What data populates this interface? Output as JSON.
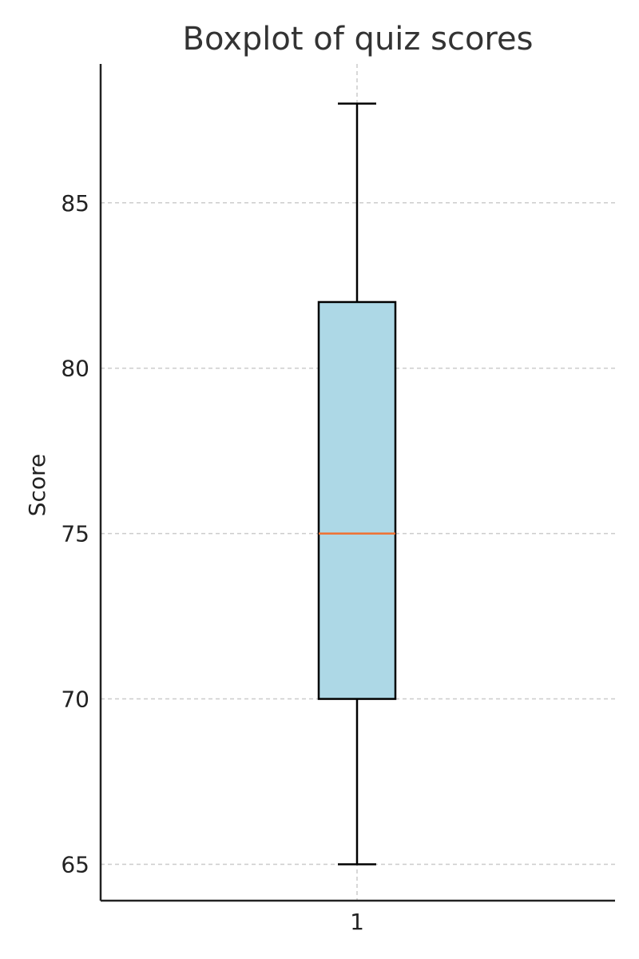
{
  "chart_data": {
    "type": "boxplot",
    "title": "Boxplot of quiz scores",
    "xlabel": "",
    "ylabel": "Score",
    "categories": [
      "1"
    ],
    "boxes": [
      {
        "category": "1",
        "whisker_low": 65,
        "q1": 70,
        "median": 75,
        "q3": 82,
        "whisker_high": 88
      }
    ],
    "yticks": [
      65,
      70,
      75,
      80,
      85
    ],
    "ylim": [
      63.9,
      89.2
    ],
    "grid": true,
    "colors": {
      "box_fill": "#add8e6",
      "box_edge": "#000000",
      "median": "#f07030",
      "grid": "#cccccc",
      "axis": "#222222"
    }
  }
}
